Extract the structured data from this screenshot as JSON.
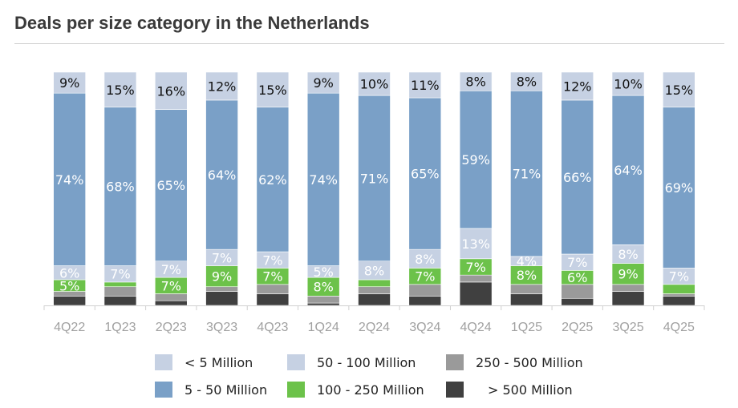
{
  "chart_data": {
    "type": "bar",
    "stacked": true,
    "title": "Deals per size category in the Netherlands",
    "categories": [
      "4Q22",
      "1Q23",
      "2Q23",
      "3Q23",
      "4Q23",
      "1Q24",
      "2Q24",
      "3Q24",
      "4Q24",
      "1Q25",
      "2Q25",
      "3Q25",
      "4Q25"
    ],
    "ylim": [
      0,
      100
    ],
    "grid": false,
    "legend_position": "bottom",
    "series": [
      {
        "name": "> 500 Million",
        "color": "#404040",
        "values": [
          4,
          4,
          2,
          6,
          5,
          1,
          5,
          4,
          10,
          5,
          3,
          6,
          4
        ],
        "labeled": false
      },
      {
        "name": "250 - 500 Million",
        "color": "#9a9a9a",
        "values": [
          2,
          4,
          3,
          2,
          4,
          3,
          3,
          5,
          3,
          4,
          6,
          3,
          1
        ],
        "labeled": false
      },
      {
        "name": "100 - 250 Million",
        "color": "#6cc24a",
        "values": [
          5,
          2,
          7,
          9,
          7,
          8,
          3,
          7,
          7,
          8,
          6,
          9,
          4
        ],
        "labeled": [
          true,
          false,
          true,
          true,
          true,
          true,
          false,
          true,
          true,
          true,
          true,
          true,
          false
        ]
      },
      {
        "name": "50 - 100 Million",
        "color": "#c6d1e3",
        "values": [
          6,
          7,
          7,
          7,
          7,
          5,
          8,
          8,
          13,
          4,
          7,
          8,
          7
        ],
        "labeled": true
      },
      {
        "name": "5 - 50 Million",
        "color": "#7aa0c7",
        "values": [
          74,
          68,
          65,
          64,
          62,
          74,
          71,
          65,
          59,
          71,
          66,
          64,
          69
        ],
        "labeled": true
      },
      {
        "name": "< 5 Million",
        "color": "#c6d1e3",
        "values": [
          9,
          15,
          16,
          12,
          15,
          9,
          10,
          11,
          8,
          8,
          12,
          10,
          15
        ],
        "labeled": true
      }
    ],
    "legend_order": [
      "< 5 Million",
      "50 - 100 Million",
      "250 - 500 Million",
      "5 - 50 Million",
      "100 - 250 Million",
      "> 500 Million"
    ]
  }
}
